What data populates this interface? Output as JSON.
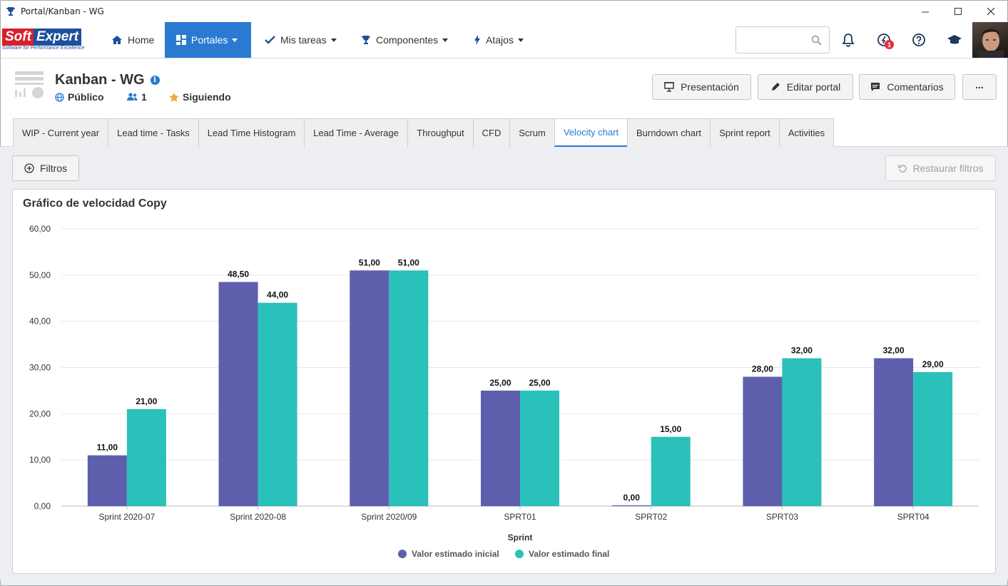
{
  "window": {
    "title": "Portal/Kanban - WG"
  },
  "brand": {
    "name_part1": "Soft",
    "name_part2": "Expert",
    "tagline": "Software for Performance Excellence"
  },
  "nav": {
    "items": [
      {
        "label": "Home",
        "icon": "home-icon"
      },
      {
        "label": "Portales",
        "icon": "portal-grid-icon",
        "active": true
      },
      {
        "label": "Mis tareas",
        "icon": "check-icon"
      },
      {
        "label": "Componentes",
        "icon": "trophy-icon"
      },
      {
        "label": "Atajos",
        "icon": "bolt-icon"
      }
    ],
    "search": {
      "value": "",
      "placeholder": ""
    },
    "notification_count": "1"
  },
  "portal": {
    "title": "Kanban - WG",
    "visibility": "Público",
    "members": "1",
    "follow_status": "Siguiendo",
    "buttons": {
      "presentation": "Presentación",
      "edit": "Editar portal",
      "comments": "Comentarios",
      "more": "..."
    }
  },
  "tabs": [
    {
      "label": "WIP - Current year"
    },
    {
      "label": "Lead time - Tasks"
    },
    {
      "label": "Lead Time Histogram"
    },
    {
      "label": "Lead Time - Average"
    },
    {
      "label": "Throughput"
    },
    {
      "label": "CFD"
    },
    {
      "label": "Scrum"
    },
    {
      "label": "Velocity chart",
      "active": true
    },
    {
      "label": "Burndown chart"
    },
    {
      "label": "Sprint report"
    },
    {
      "label": "Activities"
    }
  ],
  "filters": {
    "filter_label": "Filtros",
    "restore_label": "Restaurar filtros"
  },
  "colors": {
    "accent": "#2a7ad1",
    "series_initial": "#5d5fad",
    "series_final": "#29c1b9"
  },
  "chart_data": {
    "type": "bar",
    "title": "Gráfico de velocidad Copy",
    "xlabel": "Sprint",
    "ylabel": "",
    "categories": [
      "Sprint 2020-07",
      "Sprint 2020-08",
      "Sprint 2020/09",
      "SPRT01",
      "SPRT02",
      "SPRT03",
      "SPRT04"
    ],
    "series": [
      {
        "name": "Valor estimado inicial",
        "values": [
          11,
          48.5,
          51,
          25,
          0,
          28,
          32
        ]
      },
      {
        "name": "Valor estimado final",
        "values": [
          21,
          44,
          51,
          25,
          15,
          32,
          29
        ]
      }
    ],
    "ylim": [
      0,
      60
    ],
    "yticks": [
      "0,00",
      "10,00",
      "20,00",
      "30,00",
      "40,00",
      "50,00",
      "60,00"
    ],
    "data_labels": [
      [
        "11,00",
        "48,50",
        "51,00",
        "25,00",
        "0,00",
        "28,00",
        "32,00"
      ],
      [
        "21,00",
        "44,00",
        "51,00",
        "25,00",
        "15,00",
        "32,00",
        "29,00"
      ]
    ],
    "grid": true,
    "legend_position": "bottom"
  }
}
